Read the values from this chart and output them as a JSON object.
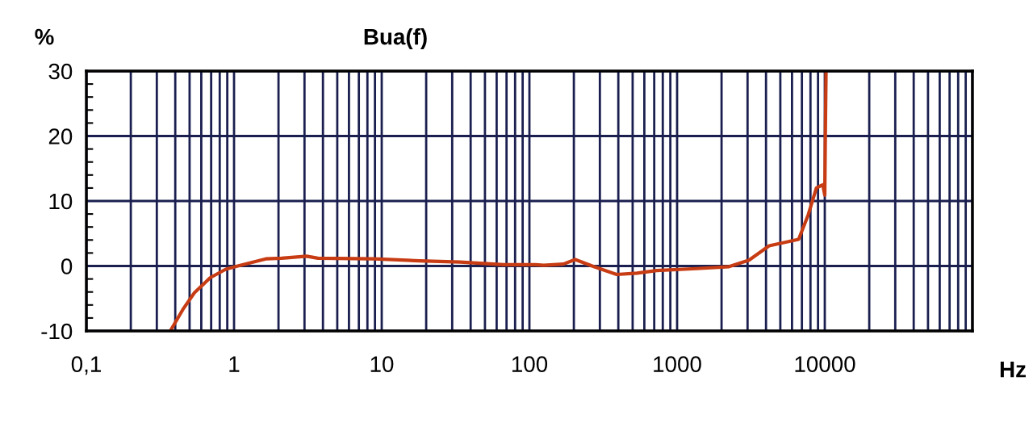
{
  "chart_data": {
    "type": "line",
    "title": "Bua(f)",
    "ylabel": "%",
    "xlabel": "Hz",
    "log": "x",
    "xlim": [
      0.1,
      100000
    ],
    "ylim": [
      -10,
      30
    ],
    "xticks": [
      {
        "value": 0.1,
        "label": "0,1"
      },
      {
        "value": 0.2,
        "label": null
      },
      {
        "value": 0.3,
        "label": null
      },
      {
        "value": 0.4,
        "label": null
      },
      {
        "value": 0.5,
        "label": null
      },
      {
        "value": 0.6,
        "label": null
      },
      {
        "value": 0.7,
        "label": null
      },
      {
        "value": 0.8,
        "label": null
      },
      {
        "value": 0.9,
        "label": null
      },
      1,
      {
        "value": 2,
        "label": null
      },
      {
        "value": 3,
        "label": null
      },
      {
        "value": 4,
        "label": null
      },
      {
        "value": 5,
        "label": null
      },
      {
        "value": 6,
        "label": null
      },
      {
        "value": 7,
        "label": null
      },
      {
        "value": 8,
        "label": null
      },
      {
        "value": 9,
        "label": null
      },
      10,
      {
        "value": 20,
        "label": null
      },
      {
        "value": 30,
        "label": null
      },
      {
        "value": 40,
        "label": null
      },
      {
        "value": 50,
        "label": null
      },
      {
        "value": 60,
        "label": null
      },
      {
        "value": 70,
        "label": null
      },
      {
        "value": 80,
        "label": null
      },
      {
        "value": 90,
        "label": null
      },
      100,
      {
        "value": 200,
        "label": null
      },
      {
        "value": 300,
        "label": null
      },
      {
        "value": 400,
        "label": null
      },
      {
        "value": 500,
        "label": null
      },
      {
        "value": 600,
        "label": null
      },
      {
        "value": 700,
        "label": null
      },
      {
        "value": 800,
        "label": null
      },
      {
        "value": 900,
        "label": null
      },
      1000,
      {
        "value": 2000,
        "label": null
      },
      {
        "value": 3000,
        "label": null
      },
      {
        "value": 4000,
        "label": null
      },
      {
        "value": 5000,
        "label": null
      },
      {
        "value": 6000,
        "label": null
      },
      {
        "value": 7000,
        "label": null
      },
      {
        "value": 8000,
        "label": null
      },
      {
        "value": 9000,
        "label": null
      },
      10000,
      {
        "value": 20000,
        "label": null
      },
      {
        "value": 30000,
        "label": null
      },
      {
        "value": 40000,
        "label": null
      },
      {
        "value": 50000,
        "label": null
      },
      {
        "value": 60000,
        "label": null
      },
      {
        "value": 70000,
        "label": null
      },
      {
        "value": 80000,
        "label": null
      },
      {
        "value": 90000,
        "label": null
      },
      {
        "value": 100000,
        "label": null
      }
    ],
    "yticks": [
      -10,
      {
        "value": -8,
        "label": null
      },
      {
        "value": -6,
        "label": null
      },
      {
        "value": -4,
        "label": null
      },
      {
        "value": -2,
        "label": null
      },
      0,
      {
        "value": 2,
        "label": null
      },
      {
        "value": 4,
        "label": null
      },
      {
        "value": 6,
        "label": null
      },
      {
        "value": 8,
        "label": null
      },
      10,
      {
        "value": 12,
        "label": null
      },
      {
        "value": 14,
        "label": null
      },
      {
        "value": 16,
        "label": null
      },
      {
        "value": 18,
        "label": null
      },
      20,
      {
        "value": 22,
        "label": null
      },
      {
        "value": 24,
        "label": null
      },
      {
        "value": 26,
        "label": null
      },
      {
        "value": 28,
        "label": null
      },
      30
    ],
    "grid": true,
    "marker": "none",
    "line_style": "solid",
    "series": [
      {
        "color": "#c83c14",
        "x": [
          0.37,
          0.45,
          0.54,
          0.69,
          0.88,
          1.06,
          1.64,
          2.1,
          3.1,
          3.7,
          8.9,
          18,
          34,
          67,
          110,
          125,
          170,
          204,
          273,
          390,
          535,
          727,
          1350,
          2250,
          3070,
          4200,
          6650,
          7730,
          8770,
          9700,
          10000,
          10100,
          10200
        ],
        "values": [
          -10,
          -6.7,
          -4.1,
          -1.8,
          -0.5,
          0,
          1.1,
          1.2,
          1.5,
          1.2,
          1.1,
          0.8,
          0.6,
          0.2,
          0.2,
          0.1,
          0.3,
          1.0,
          -0.1,
          -1.3,
          -1.1,
          -0.7,
          -0.4,
          -0.1,
          0.9,
          3.1,
          4.1,
          7.9,
          12.0,
          12.5,
          10.9,
          21.3,
          30
        ]
      }
    ]
  }
}
